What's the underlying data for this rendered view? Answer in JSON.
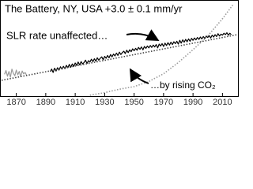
{
  "chart_data": {
    "type": "line",
    "title": "The Battery, NY, USA  +3.0 ± 0.1 mm/yr",
    "annotations": [
      "SLR rate unaffected…",
      "…by rising CO₂"
    ],
    "xlim": [
      1860,
      2020
    ],
    "xticks": [
      1870,
      1890,
      1910,
      1930,
      1950,
      1970,
      1990,
      2010
    ],
    "ylim": [
      -500,
      500
    ],
    "y2lim": [
      300,
      410
    ],
    "series": [
      {
        "color": "#9a9a9a",
        "style": "solid",
        "x": [
          1862,
          1863,
          1864,
          1865,
          1866,
          1867,
          1868,
          1869,
          1870,
          1871,
          1872,
          1873,
          1874,
          1875,
          1876,
          1877
        ],
        "values": [
          -270,
          -230,
          -290,
          -240,
          -300,
          -215,
          -260,
          -285,
          -225,
          -275,
          -240,
          -295,
          -235,
          -265,
          -250,
          -280
        ]
      },
      {
        "color": "#000000",
        "style": "solid",
        "x": [
          1893,
          1894,
          1895,
          1896,
          1897,
          1898,
          1899,
          1900,
          1901,
          1902,
          1903,
          1904,
          1905,
          1906,
          1907,
          1908,
          1909,
          1910,
          1911,
          1912,
          1913,
          1914,
          1915,
          1916,
          1917,
          1918,
          1919,
          1920,
          1921,
          1922,
          1923,
          1924,
          1925,
          1926,
          1927,
          1928,
          1929,
          1930,
          1931,
          1932,
          1933,
          1934,
          1935,
          1936,
          1937,
          1938,
          1939,
          1940,
          1941,
          1942,
          1943,
          1944,
          1945,
          1946,
          1947,
          1948,
          1949,
          1950,
          1951,
          1952,
          1953,
          1954,
          1955,
          1956,
          1957,
          1958,
          1959,
          1960,
          1961,
          1962,
          1963,
          1964,
          1965,
          1966,
          1967,
          1968,
          1969,
          1970,
          1971,
          1972,
          1973,
          1974,
          1975,
          1976,
          1977,
          1978,
          1979,
          1980,
          1981,
          1982,
          1983,
          1984,
          1985,
          1986,
          1987,
          1988,
          1989,
          1990,
          1991,
          1992,
          1993,
          1994,
          1995,
          1996,
          1997,
          1998,
          1999,
          2000,
          2001,
          2002,
          2003,
          2004,
          2005,
          2006,
          2007,
          2008,
          2009,
          2010,
          2011,
          2012,
          2013,
          2014,
          2015,
          2016
        ],
        "values": [
          -240,
          -215,
          -250,
          -205,
          -235,
          -200,
          -225,
          -190,
          -215,
          -185,
          -210,
          -175,
          -200,
          -165,
          -195,
          -160,
          -185,
          -150,
          -175,
          -140,
          -170,
          -135,
          -160,
          -145,
          -120,
          -155,
          -125,
          -140,
          -110,
          -135,
          -105,
          -130,
          -95,
          -120,
          -100,
          -85,
          -115,
          -80,
          -100,
          -70,
          -95,
          -60,
          -85,
          -55,
          -75,
          -45,
          -70,
          -35,
          -60,
          -40,
          -25,
          -50,
          -15,
          -40,
          -10,
          -30,
          0,
          -20,
          5,
          -15,
          15,
          -5,
          20,
          -10,
          25,
          5,
          30,
          10,
          35,
          15,
          40,
          20,
          45,
          10,
          50,
          30,
          55,
          25,
          60,
          35,
          65,
          40,
          70,
          45,
          75,
          55,
          80,
          50,
          90,
          60,
          95,
          70,
          100,
          75,
          105,
          80,
          110,
          90,
          115,
          95,
          120,
          100,
          125,
          105,
          130,
          110,
          135,
          120,
          140,
          115,
          145,
          125,
          150,
          130,
          160,
          135,
          155,
          145,
          165,
          150,
          170,
          145,
          165,
          150
        ]
      },
      {
        "color": "#444444",
        "style": "dotted",
        "x": [
          1860,
          2020
        ],
        "values": [
          -333,
          150
        ]
      },
      {
        "color": "#9a9a9a",
        "style": "dotted",
        "axis": "y2",
        "x": [
          1920,
          1930,
          1940,
          1950,
          1960,
          1970,
          1980,
          1990,
          2000,
          2010,
          2017
        ],
        "values": [
          301,
          304,
          308,
          311,
          317,
          326,
          339,
          354,
          370,
          390,
          406
        ]
      }
    ]
  }
}
